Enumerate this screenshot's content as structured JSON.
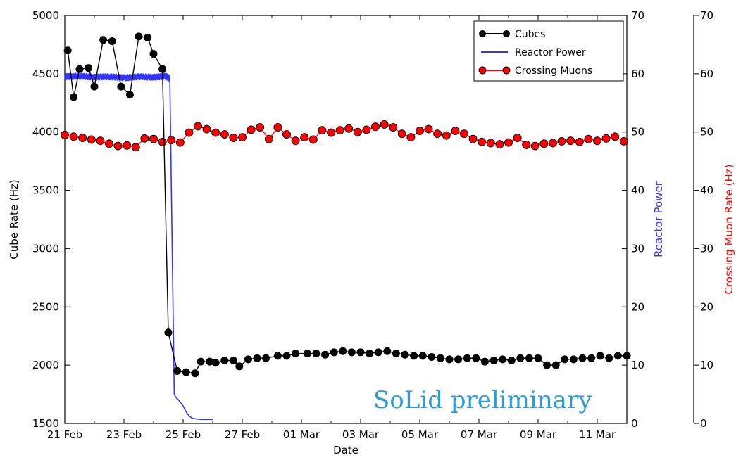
{
  "chart_data": {
    "type": "line",
    "xlabel": "Date",
    "x_tick_labels": [
      "21 Feb",
      "23 Feb",
      "25 Feb",
      "27 Feb",
      "01 Mar",
      "03 Mar",
      "05 Mar",
      "07 Mar",
      "09 Mar",
      "11 Mar"
    ],
    "x_range": [
      "2016-02-21",
      "2016-03-11"
    ],
    "left_axis": {
      "label": "Cube Rate (Hz)",
      "range": [
        1500,
        5000
      ],
      "ticks": [
        1500,
        2000,
        2500,
        3000,
        3500,
        4000,
        4500,
        5000
      ],
      "color": "#000000"
    },
    "right_axis_power": {
      "label": "Reactor Power",
      "range": [
        0,
        70
      ],
      "ticks": [
        0,
        10,
        20,
        30,
        40,
        50,
        60,
        70
      ],
      "color": "#3333ff"
    },
    "right_axis_muon": {
      "label": "Crossing Muon Rate (Hz)",
      "range": [
        0,
        70
      ],
      "ticks": [
        0,
        10,
        20,
        30,
        40,
        50,
        60,
        70
      ],
      "color": "#ff0000"
    },
    "series": [
      {
        "name": "Cubes",
        "axis": "left",
        "color": "#000000",
        "style": "line+marker",
        "x": [
          0.1,
          0.3,
          0.5,
          0.8,
          1.0,
          1.3,
          1.6,
          1.9,
          2.2,
          2.5,
          2.8,
          3.0,
          3.3,
          3.5,
          3.8,
          4.1,
          4.4,
          4.6,
          4.9,
          5.1,
          5.4,
          5.7,
          5.9,
          6.2,
          6.5,
          6.8,
          7.2,
          7.5,
          7.8,
          8.2,
          8.5,
          8.8,
          9.1,
          9.4,
          9.7,
          10.0,
          10.3,
          10.6,
          10.9,
          11.2,
          11.5,
          11.8,
          12.1,
          12.4,
          12.7,
          13.0,
          13.3,
          13.6,
          13.9,
          14.2,
          14.5,
          14.8,
          15.1,
          15.4,
          15.7,
          16.0,
          16.3,
          16.6,
          16.9,
          17.2,
          17.5,
          17.8,
          18.1,
          18.4,
          18.7,
          19.0
        ],
        "y": [
          4700,
          4300,
          4540,
          4550,
          4390,
          4790,
          4780,
          4390,
          4320,
          4820,
          4810,
          4670,
          4540,
          2280,
          1950,
          1940,
          1930,
          2030,
          2030,
          2020,
          2040,
          2040,
          1990,
          2050,
          2060,
          2060,
          2080,
          2080,
          2100,
          2100,
          2100,
          2090,
          2110,
          2120,
          2110,
          2110,
          2100,
          2110,
          2120,
          2100,
          2090,
          2080,
          2080,
          2070,
          2060,
          2050,
          2050,
          2060,
          2060,
          2030,
          2040,
          2050,
          2040,
          2060,
          2060,
          2060,
          2000,
          2000,
          2050,
          2050,
          2060,
          2060,
          2080,
          2060,
          2080,
          2080
        ]
      },
      {
        "name": "Reactor Power",
        "axis": "right",
        "color": "#3333ff",
        "style": "line",
        "x": [
          0.0,
          0.5,
          1.0,
          1.5,
          2.0,
          2.5,
          3.0,
          3.4,
          3.55,
          3.7,
          3.75,
          3.85,
          4.0,
          4.1,
          4.2,
          4.3,
          4.4,
          4.6,
          5.0
        ],
        "y": [
          59.5,
          59.6,
          59.4,
          59.5,
          59.3,
          59.5,
          59.4,
          59.6,
          59.2,
          5.0,
          4.5,
          4.0,
          3.0,
          2.0,
          1.3,
          0.9,
          0.8,
          0.7,
          0.7
        ]
      },
      {
        "name": "Crossing Muons",
        "axis": "right",
        "color": "#ff0000",
        "style": "line+marker",
        "x": [
          0.0,
          0.3,
          0.6,
          0.9,
          1.2,
          1.5,
          1.8,
          2.1,
          2.4,
          2.7,
          3.0,
          3.3,
          3.6,
          3.9,
          4.2,
          4.5,
          4.8,
          5.1,
          5.4,
          5.7,
          6.0,
          6.3,
          6.6,
          6.9,
          7.2,
          7.5,
          7.8,
          8.1,
          8.4,
          8.7,
          9.0,
          9.3,
          9.6,
          9.9,
          10.2,
          10.5,
          10.8,
          11.1,
          11.4,
          11.7,
          12.0,
          12.3,
          12.6,
          12.9,
          13.2,
          13.5,
          13.8,
          14.1,
          14.4,
          14.7,
          15.0,
          15.3,
          15.6,
          15.9,
          16.2,
          16.5,
          16.8,
          17.1,
          17.4,
          17.7,
          18.0,
          18.3,
          18.6,
          18.9
        ],
        "y": [
          49.5,
          49.2,
          49.0,
          48.7,
          48.5,
          48.0,
          47.6,
          47.7,
          47.4,
          48.9,
          48.8,
          48.3,
          48.6,
          48.2,
          49.9,
          51.0,
          50.5,
          49.9,
          49.6,
          49.0,
          49.1,
          50.4,
          50.8,
          48.8,
          50.8,
          49.6,
          48.5,
          49.1,
          48.7,
          50.3,
          49.9,
          50.3,
          50.6,
          50.0,
          50.4,
          50.9,
          51.3,
          50.8,
          49.7,
          49.1,
          50.2,
          50.5,
          49.7,
          49.4,
          50.2,
          49.7,
          48.8,
          48.3,
          48.1,
          47.9,
          48.2,
          49.0,
          47.8,
          47.6,
          48.0,
          48.1,
          48.4,
          48.5,
          48.3,
          48.8,
          48.5,
          48.9,
          49.2,
          48.4
        ]
      }
    ],
    "legend": {
      "placement": "top-right",
      "entries": [
        "Cubes",
        "Reactor Power",
        "Crossing Muons"
      ]
    },
    "annotation": {
      "text": "SoLid preliminary",
      "color": "#2e9bd6"
    },
    "grid": false
  }
}
